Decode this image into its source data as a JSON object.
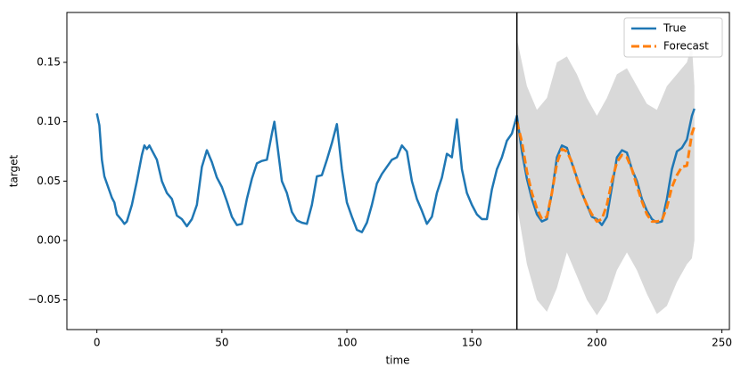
{
  "chart_data": {
    "type": "line",
    "xlabel": "time",
    "ylabel": "target",
    "xlim": [
      -12,
      253
    ],
    "ylim": [
      -0.075,
      0.192
    ],
    "xticks": [
      0,
      50,
      100,
      150,
      200,
      250
    ],
    "yticks": [
      {
        "value": -0.05,
        "label": "−0.05"
      },
      {
        "value": 0,
        "label": "0.00"
      },
      0.05,
      {
        "value": 0.1,
        "label": "0.10"
      },
      0.15
    ],
    "vline": 168,
    "legend": "upper right",
    "band": {
      "color": "#d9d9d9",
      "x": [
        168,
        172,
        176,
        180,
        184,
        188,
        192,
        196,
        200,
        204,
        208,
        212,
        216,
        220,
        224,
        228,
        232,
        236,
        238,
        239
      ],
      "lower": [
        0.03,
        -0.02,
        -0.05,
        -0.06,
        -0.04,
        -0.01,
        -0.03,
        -0.05,
        -0.063,
        -0.05,
        -0.025,
        -0.01,
        -0.025,
        -0.045,
        -0.062,
        -0.055,
        -0.035,
        -0.02,
        -0.015,
        0.0
      ],
      "upper": [
        0.17,
        0.13,
        0.11,
        0.12,
        0.15,
        0.155,
        0.14,
        0.12,
        0.105,
        0.12,
        0.14,
        0.145,
        0.13,
        0.115,
        0.11,
        0.13,
        0.14,
        0.15,
        0.165,
        0.13
      ]
    },
    "series": [
      {
        "name": "True",
        "color": "#1f77b4",
        "dash": false,
        "x": [
          0,
          1,
          2,
          3,
          4,
          6,
          7,
          8,
          10,
          11,
          12,
          14,
          16,
          18,
          19,
          20,
          21,
          22,
          24,
          26,
          28,
          30,
          32,
          34,
          36,
          38,
          40,
          42,
          44,
          46,
          48,
          50,
          52,
          54,
          56,
          58,
          60,
          62,
          64,
          66,
          68,
          70,
          71,
          74,
          76,
          78,
          80,
          82,
          84,
          86,
          88,
          90,
          92,
          94,
          96,
          98,
          100,
          102,
          104,
          106,
          108,
          110,
          112,
          114,
          116,
          118,
          120,
          122,
          124,
          126,
          128,
          130,
          132,
          134,
          136,
          138,
          140,
          142,
          144,
          146,
          148,
          150,
          152,
          154,
          156,
          158,
          160,
          162,
          164,
          166,
          168,
          170,
          172,
          174,
          176,
          178,
          180,
          182,
          184,
          186,
          188,
          190,
          192,
          194,
          196,
          198,
          200,
          202,
          204,
          206,
          208,
          210,
          212,
          214,
          216,
          218,
          220,
          222,
          224,
          226,
          228,
          230,
          232,
          234,
          236,
          238,
          239
        ],
        "values": [
          0.107,
          0.097,
          0.068,
          0.054,
          0.048,
          0.036,
          0.032,
          0.022,
          0.017,
          0.014,
          0.016,
          0.03,
          0.05,
          0.072,
          0.08,
          0.077,
          0.08,
          0.076,
          0.068,
          0.05,
          0.04,
          0.035,
          0.021,
          0.018,
          0.012,
          0.018,
          0.03,
          0.062,
          0.076,
          0.066,
          0.053,
          0.045,
          0.033,
          0.02,
          0.013,
          0.014,
          0.035,
          0.052,
          0.065,
          0.067,
          0.068,
          0.09,
          0.1,
          0.05,
          0.04,
          0.024,
          0.017,
          0.015,
          0.014,
          0.03,
          0.054,
          0.055,
          0.068,
          0.082,
          0.098,
          0.06,
          0.032,
          0.02,
          0.009,
          0.007,
          0.015,
          0.03,
          0.048,
          0.056,
          0.062,
          0.068,
          0.07,
          0.08,
          0.075,
          0.05,
          0.035,
          0.025,
          0.014,
          0.02,
          0.04,
          0.053,
          0.073,
          0.07,
          0.102,
          0.06,
          0.04,
          0.03,
          0.022,
          0.018,
          0.018,
          0.043,
          0.06,
          0.07,
          0.084,
          0.09,
          0.105,
          0.075,
          0.052,
          0.035,
          0.022,
          0.016,
          0.018,
          0.04,
          0.07,
          0.08,
          0.078,
          0.065,
          0.053,
          0.04,
          0.03,
          0.02,
          0.018,
          0.013,
          0.02,
          0.045,
          0.07,
          0.076,
          0.074,
          0.06,
          0.05,
          0.035,
          0.025,
          0.018,
          0.015,
          0.016,
          0.035,
          0.06,
          0.075,
          0.078,
          0.085,
          0.105,
          0.111
        ]
      },
      {
        "name": "Forecast",
        "color": "#ff7f0e",
        "dash": true,
        "x": [
          168,
          170,
          172,
          174,
          176,
          178,
          180,
          182,
          184,
          186,
          188,
          190,
          192,
          194,
          196,
          198,
          200,
          202,
          204,
          206,
          208,
          210,
          212,
          214,
          216,
          218,
          220,
          222,
          224,
          226,
          228,
          230,
          232,
          234,
          236,
          238,
          239
        ],
        "values": [
          0.1,
          0.083,
          0.058,
          0.04,
          0.027,
          0.018,
          0.02,
          0.04,
          0.065,
          0.077,
          0.075,
          0.066,
          0.052,
          0.04,
          0.03,
          0.022,
          0.016,
          0.018,
          0.03,
          0.05,
          0.066,
          0.072,
          0.07,
          0.06,
          0.046,
          0.033,
          0.022,
          0.016,
          0.016,
          0.017,
          0.028,
          0.045,
          0.055,
          0.062,
          0.063,
          0.09,
          0.096
        ]
      }
    ]
  }
}
